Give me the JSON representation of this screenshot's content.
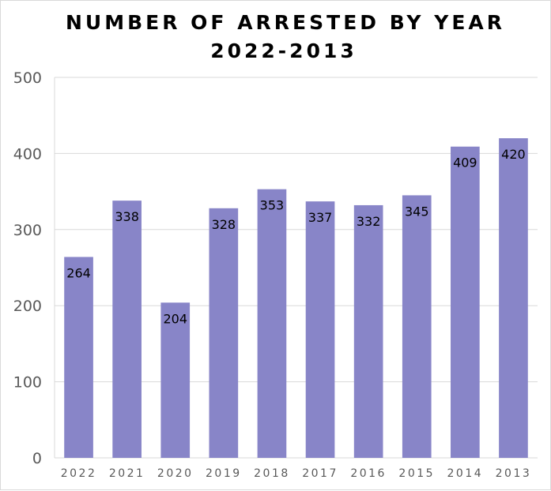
{
  "chart_data": {
    "type": "bar",
    "title": [
      "NUMBER OF ARRESTED BY YEAR",
      "2022-2013"
    ],
    "xlabel": "",
    "ylabel": "",
    "categories": [
      "2022",
      "2021",
      "2020",
      "2019",
      "2018",
      "2017",
      "2016",
      "2015",
      "2014",
      "2013"
    ],
    "values": [
      264,
      338,
      204,
      328,
      353,
      337,
      332,
      345,
      409,
      420
    ],
    "data_labels": [
      "264",
      "338",
      "204",
      "328",
      "353",
      "337",
      "332",
      "345",
      "409",
      "420"
    ],
    "ylim": [
      0,
      500
    ],
    "yticks": [
      0,
      100,
      200,
      300,
      400,
      500
    ],
    "ytick_labels": [
      "0",
      "100",
      "200",
      "300",
      "400",
      "500"
    ],
    "grid": true,
    "legend": "none",
    "colors": {
      "bar": "#8885c8",
      "grid": "#d9d9d9",
      "axis_text": "#595959",
      "title": "#000000",
      "label": "#000000"
    }
  }
}
